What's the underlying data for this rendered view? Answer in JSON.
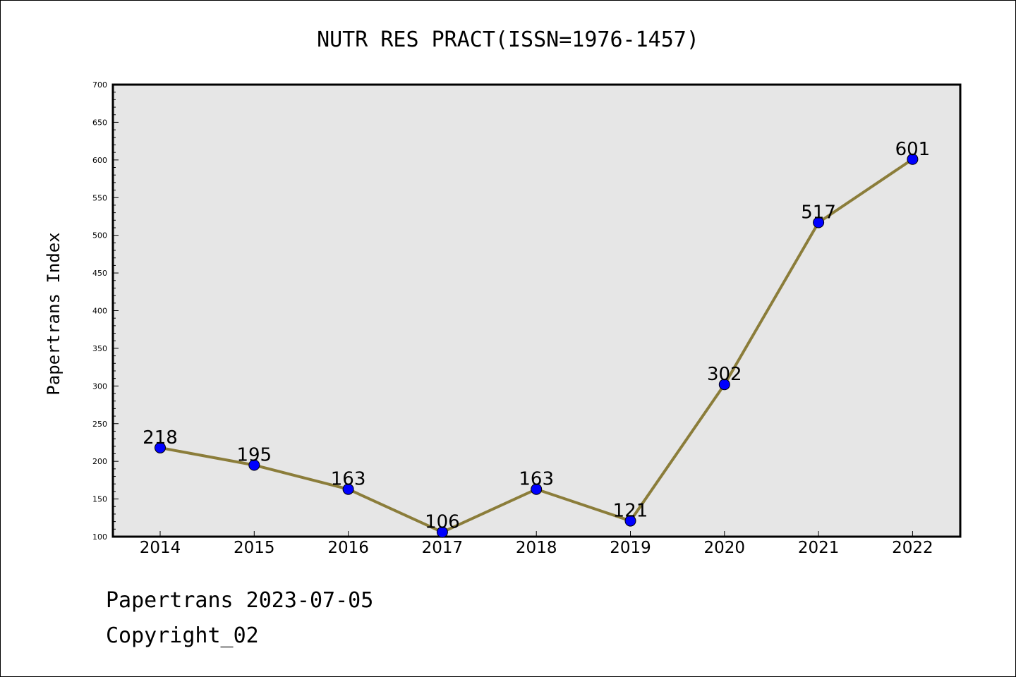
{
  "chart_data": {
    "type": "line",
    "title": "NUTR RES PRACT(ISSN=1976-1457)",
    "xlabel": "",
    "ylabel": "Papertrans Index",
    "categories": [
      "2014",
      "2015",
      "2016",
      "2017",
      "2018",
      "2019",
      "2020",
      "2021",
      "2022"
    ],
    "values": [
      218,
      195,
      163,
      106,
      163,
      121,
      302,
      517,
      601
    ],
    "ylim": [
      100,
      700
    ],
    "yticks": [
      100,
      150,
      200,
      250,
      300,
      350,
      400,
      450,
      500,
      550,
      600,
      650,
      700
    ],
    "grid": false,
    "line_color": "#8b7d3a",
    "marker_color": "#0000ff",
    "plot_background": "#e6e6e6"
  },
  "footer": {
    "line1": "Papertrans 2023-07-05",
    "line2": "Copyright_02"
  }
}
